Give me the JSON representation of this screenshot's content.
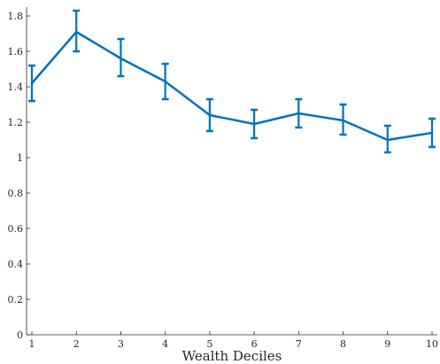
{
  "chart_data": {
    "type": "line",
    "title": "",
    "xlabel": "Wealth Deciles",
    "ylabel": "",
    "x": [
      1,
      2,
      3,
      4,
      5,
      6,
      7,
      8,
      9,
      10
    ],
    "xlim": [
      1,
      10
    ],
    "ylim": [
      0,
      1.85
    ],
    "yticks": [
      0,
      0.2,
      0.4,
      0.6,
      0.8,
      1,
      1.2,
      1.4,
      1.6,
      1.8
    ],
    "ytick_labels": [
      "0",
      "0.2",
      "0.4",
      "0.6",
      "0.8",
      "1",
      "1.2",
      "1.4",
      "1.6",
      "1.8"
    ],
    "xticks": [
      1,
      2,
      3,
      4,
      5,
      6,
      7,
      8,
      9,
      10
    ],
    "xtick_labels": [
      "1",
      "2",
      "3",
      "4",
      "5",
      "6",
      "7",
      "8",
      "9",
      "10"
    ],
    "grid": false,
    "series": [
      {
        "values": [
          1.42,
          1.71,
          1.56,
          1.43,
          1.24,
          1.19,
          1.25,
          1.21,
          1.1,
          1.14
        ],
        "lower": [
          1.32,
          1.6,
          1.46,
          1.33,
          1.15,
          1.11,
          1.17,
          1.13,
          1.03,
          1.06
        ],
        "upper": [
          1.52,
          1.83,
          1.67,
          1.53,
          1.33,
          1.27,
          1.33,
          1.3,
          1.18,
          1.22
        ],
        "color": "#0072BD"
      }
    ],
    "axis_color": "#262626"
  }
}
